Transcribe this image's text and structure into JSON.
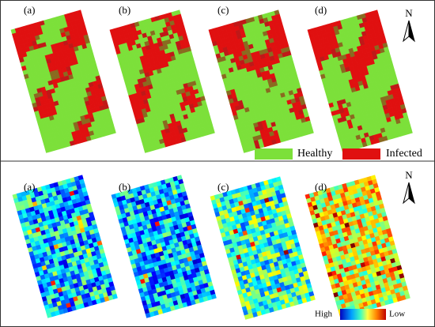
{
  "top_panel": {
    "labels": [
      "(a)",
      "(b)",
      "(c)",
      "(d)"
    ]
  },
  "north": "N",
  "legend": {
    "items": [
      "Healthy",
      "Infected"
    ]
  },
  "bottom_panel": {
    "labels": [
      "(a)",
      "(b)",
      "(c)",
      "(d)"
    ]
  },
  "colorbar": {
    "high": "High",
    "low": "Low"
  }
}
